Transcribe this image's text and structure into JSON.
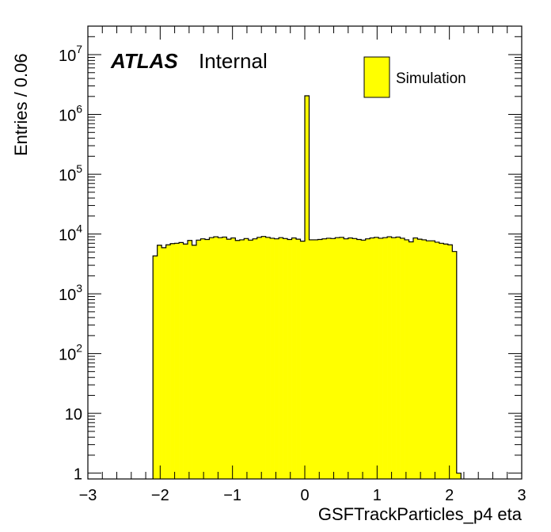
{
  "chart_data": {
    "type": "bar",
    "xlabel": "GSFTrackParticles_p4 eta",
    "ylabel": "Entries / 0.06",
    "xlim": [
      -3,
      3
    ],
    "ylim": [
      0.8,
      30000000
    ],
    "yscale": "log",
    "bin_width": 0.06,
    "x_ticks": [
      {
        "value": -3,
        "label": "−3"
      },
      {
        "value": -2,
        "label": "−2"
      },
      {
        "value": -1,
        "label": "−1"
      },
      {
        "value": 0,
        "label": "0"
      },
      {
        "value": 1,
        "label": "1"
      },
      {
        "value": 2,
        "label": "2"
      },
      {
        "value": 3,
        "label": "3"
      }
    ],
    "y_ticks": [
      {
        "value": 1,
        "base": "1",
        "exp": ""
      },
      {
        "value": 10,
        "base": "10",
        "exp": ""
      },
      {
        "value": 100,
        "base": "10",
        "exp": "2"
      },
      {
        "value": 1000,
        "base": "10",
        "exp": "3"
      },
      {
        "value": 10000,
        "base": "10",
        "exp": "4"
      },
      {
        "value": 100000,
        "base": "10",
        "exp": "5"
      },
      {
        "value": 1000000,
        "base": "10",
        "exp": "6"
      },
      {
        "value": 10000000,
        "base": "10",
        "exp": "7"
      }
    ],
    "series": [
      {
        "fill_color": "#ffff00",
        "line_color": "#000000",
        "bins": [
          {
            "x": -2.1,
            "y": 4300
          },
          {
            "x": -2.04,
            "y": 6500
          },
          {
            "x": -1.98,
            "y": 5900
          },
          {
            "x": -1.92,
            "y": 6600
          },
          {
            "x": -1.86,
            "y": 6900
          },
          {
            "x": -1.8,
            "y": 7000
          },
          {
            "x": -1.74,
            "y": 7200
          },
          {
            "x": -1.68,
            "y": 6800
          },
          {
            "x": -1.62,
            "y": 7800
          },
          {
            "x": -1.56,
            "y": 6500
          },
          {
            "x": -1.5,
            "y": 7900
          },
          {
            "x": -1.44,
            "y": 8300
          },
          {
            "x": -1.38,
            "y": 8100
          },
          {
            "x": -1.32,
            "y": 8700
          },
          {
            "x": -1.26,
            "y": 9000
          },
          {
            "x": -1.2,
            "y": 8700
          },
          {
            "x": -1.14,
            "y": 8900
          },
          {
            "x": -1.08,
            "y": 8200
          },
          {
            "x": -1.02,
            "y": 8600
          },
          {
            "x": -0.96,
            "y": 7800
          },
          {
            "x": -0.9,
            "y": 8000
          },
          {
            "x": -0.84,
            "y": 8400
          },
          {
            "x": -0.78,
            "y": 7900
          },
          {
            "x": -0.72,
            "y": 8300
          },
          {
            "x": -0.66,
            "y": 8800
          },
          {
            "x": -0.6,
            "y": 9100
          },
          {
            "x": -0.54,
            "y": 8800
          },
          {
            "x": -0.48,
            "y": 8500
          },
          {
            "x": -0.42,
            "y": 8300
          },
          {
            "x": -0.36,
            "y": 8700
          },
          {
            "x": -0.3,
            "y": 8400
          },
          {
            "x": -0.24,
            "y": 8100
          },
          {
            "x": -0.18,
            "y": 8600
          },
          {
            "x": -0.12,
            "y": 8200
          },
          {
            "x": -0.06,
            "y": 7600
          },
          {
            "x": 0.0,
            "y": 2050000
          },
          {
            "x": 0.06,
            "y": 8000
          },
          {
            "x": 0.12,
            "y": 8000
          },
          {
            "x": 0.18,
            "y": 8100
          },
          {
            "x": 0.24,
            "y": 8300
          },
          {
            "x": 0.3,
            "y": 8500
          },
          {
            "x": 0.36,
            "y": 8400
          },
          {
            "x": 0.42,
            "y": 8700
          },
          {
            "x": 0.48,
            "y": 8800
          },
          {
            "x": 0.54,
            "y": 8300
          },
          {
            "x": 0.6,
            "y": 8600
          },
          {
            "x": 0.66,
            "y": 8400
          },
          {
            "x": 0.72,
            "y": 8100
          },
          {
            "x": 0.78,
            "y": 7900
          },
          {
            "x": 0.84,
            "y": 8300
          },
          {
            "x": 0.9,
            "y": 8600
          },
          {
            "x": 0.96,
            "y": 8800
          },
          {
            "x": 1.02,
            "y": 8500
          },
          {
            "x": 1.08,
            "y": 8700
          },
          {
            "x": 1.14,
            "y": 9000
          },
          {
            "x": 1.2,
            "y": 8700
          },
          {
            "x": 1.26,
            "y": 8900
          },
          {
            "x": 1.32,
            "y": 8500
          },
          {
            "x": 1.38,
            "y": 8000
          },
          {
            "x": 1.44,
            "y": 7400
          },
          {
            "x": 1.5,
            "y": 8600
          },
          {
            "x": 1.56,
            "y": 8200
          },
          {
            "x": 1.62,
            "y": 8000
          },
          {
            "x": 1.68,
            "y": 7700
          },
          {
            "x": 1.74,
            "y": 7700
          },
          {
            "x": 1.8,
            "y": 7300
          },
          {
            "x": 1.86,
            "y": 7000
          },
          {
            "x": 1.92,
            "y": 6800
          },
          {
            "x": 1.98,
            "y": 6600
          },
          {
            "x": 2.04,
            "y": 5100
          },
          {
            "x": 2.1,
            "y": 1
          }
        ]
      }
    ],
    "legend": {
      "label": "Simulation",
      "placement": "top-right"
    },
    "annotations": {
      "atlas": "ATLAS",
      "status": "Internal"
    }
  }
}
